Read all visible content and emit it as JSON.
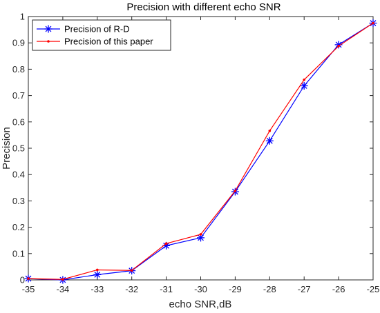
{
  "chart_data": {
    "type": "line",
    "title": "Precision with different echo SNR",
    "xlabel": "echo SNR,dB",
    "ylabel": "Precision",
    "xlim": [
      -35,
      -25
    ],
    "ylim": [
      0,
      1
    ],
    "x": [
      -35,
      -34,
      -33,
      -32,
      -31,
      -30,
      -29,
      -28,
      -27,
      -26,
      -25
    ],
    "xticks": [
      -35,
      -34,
      -33,
      -32,
      -31,
      -30,
      -29,
      -28,
      -27,
      -26,
      -25
    ],
    "yticks": [
      0,
      0.1,
      0.2,
      0.3,
      0.4,
      0.5,
      0.6,
      0.7,
      0.8,
      0.9,
      1
    ],
    "xtick_labels": [
      "-35",
      "-34",
      "-33",
      "-32",
      "-31",
      "-30",
      "-29",
      "-28",
      "-27",
      "-26",
      "-25"
    ],
    "ytick_labels": [
      "0",
      "0.1",
      "0.2",
      "0.3",
      "0.4",
      "0.5",
      "0.6",
      "0.7",
      "0.8",
      "0.9",
      "1"
    ],
    "grid": false,
    "legend_position": "top-left",
    "series": [
      {
        "name": "Precision of R-D",
        "color": "#0000ff",
        "marker": "asterisk",
        "values": [
          0.005,
          0.0,
          0.02,
          0.035,
          0.13,
          0.16,
          0.335,
          0.528,
          0.737,
          0.893,
          0.975
        ]
      },
      {
        "name": "Precision of this paper",
        "color": "#ff0000",
        "marker": "dot",
        "values": [
          0.005,
          0.002,
          0.038,
          0.036,
          0.138,
          0.173,
          0.338,
          0.566,
          0.76,
          0.888,
          0.975
        ]
      }
    ]
  }
}
